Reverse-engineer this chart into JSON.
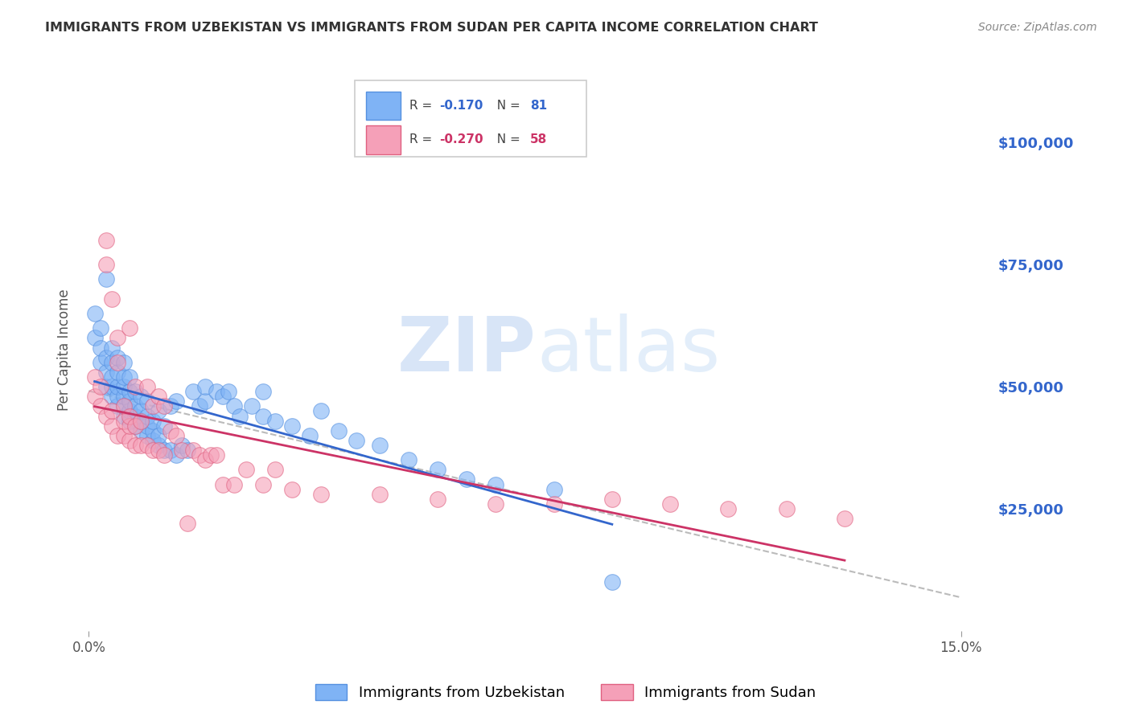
{
  "title": "IMMIGRANTS FROM UZBEKISTAN VS IMMIGRANTS FROM SUDAN PER CAPITA INCOME CORRELATION CHART",
  "source": "Source: ZipAtlas.com",
  "ylabel": "Per Capita Income",
  "xlim": [
    0.0,
    0.15
  ],
  "ylim": [
    0,
    110000
  ],
  "yticks": [
    25000,
    50000,
    75000,
    100000
  ],
  "ytick_labels": [
    "$25,000",
    "$50,000",
    "$75,000",
    "$100,000"
  ],
  "grid_color": "#cccccc",
  "background_color": "#ffffff",
  "watermark_zip": "ZIP",
  "watermark_atlas": "atlas",
  "title_color": "#333333",
  "trendline_dash_color": "#bbbbbb",
  "uzbekistan": {
    "name": "Immigrants from Uzbekistan",
    "color": "#7fb3f5",
    "edge_color": "#5590e0",
    "trend_color": "#3366cc",
    "R": -0.17,
    "N": 81,
    "x": [
      0.001,
      0.001,
      0.002,
      0.002,
      0.002,
      0.003,
      0.003,
      0.003,
      0.003,
      0.004,
      0.004,
      0.004,
      0.004,
      0.004,
      0.005,
      0.005,
      0.005,
      0.005,
      0.005,
      0.006,
      0.006,
      0.006,
      0.006,
      0.006,
      0.006,
      0.007,
      0.007,
      0.007,
      0.007,
      0.007,
      0.008,
      0.008,
      0.008,
      0.008,
      0.009,
      0.009,
      0.009,
      0.009,
      0.01,
      0.01,
      0.01,
      0.01,
      0.011,
      0.011,
      0.011,
      0.012,
      0.012,
      0.012,
      0.013,
      0.013,
      0.014,
      0.014,
      0.015,
      0.015,
      0.016,
      0.017,
      0.018,
      0.019,
      0.02,
      0.02,
      0.022,
      0.023,
      0.024,
      0.025,
      0.026,
      0.028,
      0.03,
      0.03,
      0.032,
      0.035,
      0.038,
      0.04,
      0.043,
      0.046,
      0.05,
      0.055,
      0.06,
      0.065,
      0.07,
      0.08,
      0.09
    ],
    "y": [
      60000,
      65000,
      55000,
      58000,
      62000,
      50000,
      53000,
      56000,
      72000,
      48000,
      50000,
      52000,
      55000,
      58000,
      46000,
      48000,
      50000,
      53000,
      56000,
      44000,
      46000,
      48000,
      50000,
      52000,
      55000,
      43000,
      45000,
      47000,
      49000,
      52000,
      42000,
      44000,
      46000,
      49000,
      41000,
      43000,
      45000,
      48000,
      40000,
      42000,
      44000,
      47000,
      39000,
      41000,
      43000,
      38000,
      40000,
      45000,
      37000,
      42000,
      37000,
      46000,
      36000,
      47000,
      38000,
      37000,
      49000,
      46000,
      47000,
      50000,
      49000,
      48000,
      49000,
      46000,
      44000,
      46000,
      49000,
      44000,
      43000,
      42000,
      40000,
      45000,
      41000,
      39000,
      38000,
      35000,
      33000,
      31000,
      30000,
      29000,
      10000
    ]
  },
  "sudan": {
    "name": "Immigrants from Sudan",
    "color": "#f5a0b8",
    "edge_color": "#e06080",
    "trend_color": "#cc3366",
    "R": -0.27,
    "N": 58,
    "x": [
      0.001,
      0.001,
      0.002,
      0.002,
      0.003,
      0.003,
      0.003,
      0.004,
      0.004,
      0.004,
      0.005,
      0.005,
      0.005,
      0.006,
      0.006,
      0.006,
      0.007,
      0.007,
      0.007,
      0.007,
      0.008,
      0.008,
      0.008,
      0.009,
      0.009,
      0.01,
      0.01,
      0.011,
      0.011,
      0.012,
      0.012,
      0.013,
      0.013,
      0.014,
      0.015,
      0.016,
      0.017,
      0.018,
      0.019,
      0.02,
      0.021,
      0.022,
      0.023,
      0.025,
      0.027,
      0.03,
      0.032,
      0.035,
      0.04,
      0.05,
      0.06,
      0.07,
      0.08,
      0.09,
      0.1,
      0.11,
      0.12,
      0.13
    ],
    "y": [
      48000,
      52000,
      46000,
      50000,
      44000,
      75000,
      80000,
      42000,
      45000,
      68000,
      40000,
      55000,
      60000,
      40000,
      43000,
      46000,
      39000,
      42000,
      44000,
      62000,
      38000,
      42000,
      50000,
      38000,
      43000,
      38000,
      50000,
      37000,
      46000,
      37000,
      48000,
      36000,
      46000,
      41000,
      40000,
      37000,
      22000,
      37000,
      36000,
      35000,
      36000,
      36000,
      30000,
      30000,
      33000,
      30000,
      33000,
      29000,
      28000,
      28000,
      27000,
      26000,
      26000,
      27000,
      26000,
      25000,
      25000,
      23000
    ]
  }
}
